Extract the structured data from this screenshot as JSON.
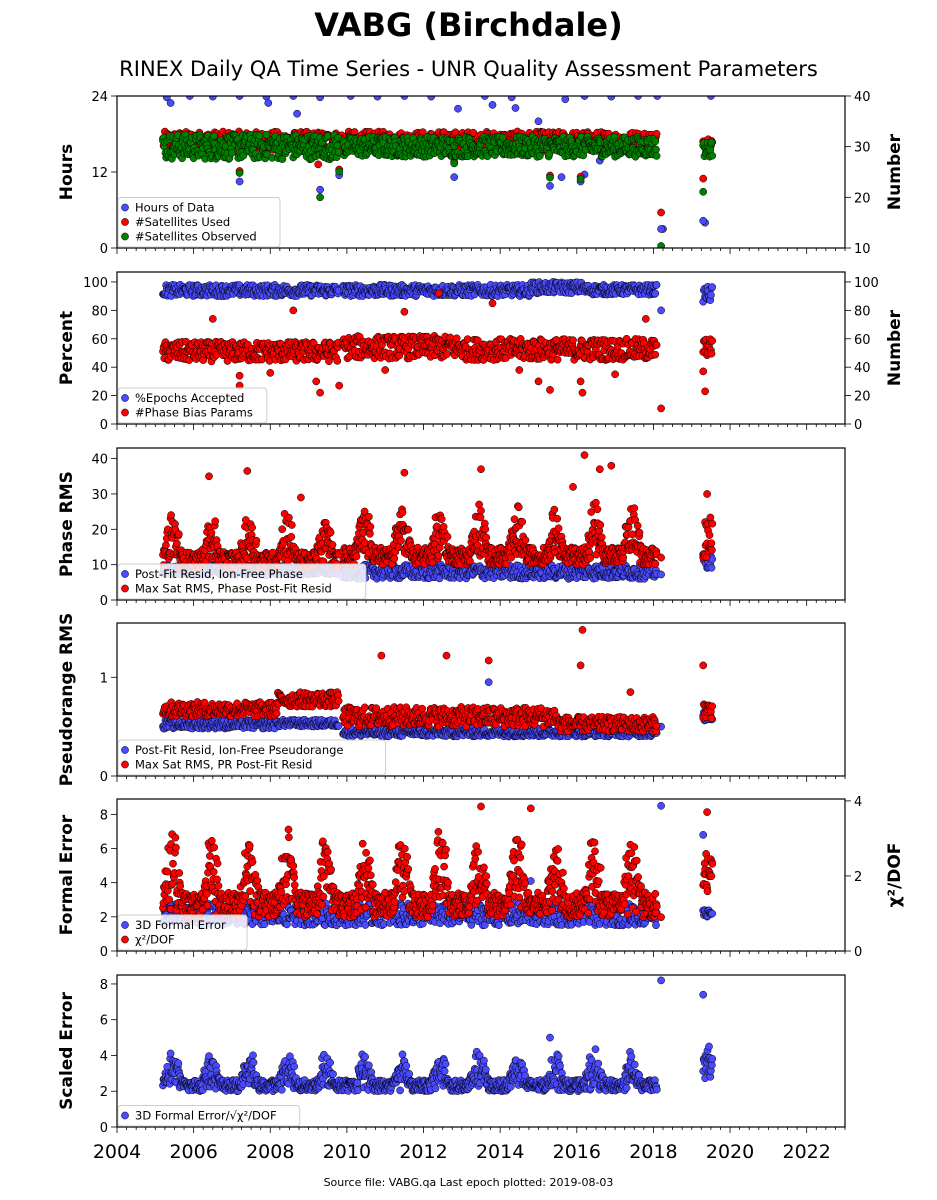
{
  "page": {
    "title": "VABG (Birchdale)",
    "subtitle": "RINEX Daily QA Time Series - UNR Quality Assessment Parameters",
    "footer": "Source file: VABG.qa Last epoch plotted: 2019-08-03"
  },
  "colors": {
    "blue": "#4a4aff",
    "red": "#ff0000",
    "green": "#008000",
    "edge": "#000000"
  },
  "chart_data": [
    {
      "type": "scatter",
      "ylabel": "Hours",
      "y2label": "Number",
      "ylim": [
        0,
        24
      ],
      "yticks": [
        0,
        12,
        24
      ],
      "y2lim": [
        10,
        40
      ],
      "y2ticks": [
        10,
        20,
        30,
        40
      ],
      "xlim": [
        2004,
        2023
      ],
      "legend_position": "lower-left",
      "series": [
        {
          "name": "Hours of Data",
          "color": "blue",
          "axis": "left",
          "pattern": {
            "points": [
              [
                2005.3,
                23.8
              ],
              [
                2005.9,
                24
              ],
              [
                2006.5,
                23.9
              ],
              [
                2007.2,
                24
              ],
              [
                2007.9,
                23.9
              ],
              [
                2008.6,
                24
              ],
              [
                2009.3,
                23.8
              ],
              [
                2010.1,
                24
              ],
              [
                2010.8,
                23.9
              ],
              [
                2011.5,
                24
              ],
              [
                2012.2,
                23.9
              ],
              [
                2012.9,
                22
              ],
              [
                2013.6,
                24
              ],
              [
                2014.3,
                23.8
              ],
              [
                2015.0,
                20
              ],
              [
                2015.3,
                17
              ],
              [
                2015.7,
                23.5
              ],
              [
                2016.2,
                24
              ],
              [
                2016.9,
                23.9
              ],
              [
                2017.6,
                24
              ],
              [
                2018.1,
                24
              ],
              [
                2018.25,
                3
              ],
              [
                2019.35,
                4
              ],
              [
                2019.5,
                24
              ]
            ]
          },
          "outliers": [
            [
              2005.4,
              22.9
            ],
            [
              2007.2,
              10.5
            ],
            [
              2007.95,
              22.9
            ],
            [
              2008.7,
              21.2
            ],
            [
              2009.25,
              17.7
            ],
            [
              2009.3,
              9.2
            ],
            [
              2009.8,
              11.5
            ],
            [
              2012.8,
              11.2
            ],
            [
              2013.8,
              22.6
            ],
            [
              2014.4,
              22.1
            ],
            [
              2014.45,
              17.8
            ],
            [
              2015.3,
              9.8
            ],
            [
              2015.6,
              11.2
            ],
            [
              2016.1,
              10.5
            ],
            [
              2016.2,
              11.6
            ],
            [
              2016.6,
              13.8
            ],
            [
              2017.8,
              17.2
            ],
            [
              2018.2,
              3.0
            ],
            [
              2019.3,
              4.3
            ],
            [
              2019.45,
              16.5
            ]
          ]
        },
        {
          "name": "#Satellites Used",
          "color": "red",
          "axis": "right",
          "pattern": {
            "ranges": [
              [
                2005.2,
                2018.1,
                29,
                33
              ],
              [
                2019.3,
                2019.55,
                30,
                32
              ]
            ]
          },
          "outliers": [
            [
              2007.2,
              25.2
            ],
            [
              2009.25,
              26.5
            ],
            [
              2009.8,
              25.5
            ],
            [
              2012.8,
              27
            ],
            [
              2015.3,
              24.3
            ],
            [
              2016.1,
              24.1
            ],
            [
              2018.2,
              17.0
            ],
            [
              2019.3,
              23.7
            ]
          ]
        },
        {
          "name": "#Satellites Observed",
          "color": "green",
          "axis": "right",
          "pattern": {
            "ranges": [
              [
                2005.2,
                2009.8,
                27.5,
                32.5
              ],
              [
                2009.9,
                2018.1,
                28,
                32
              ],
              [
                2019.3,
                2019.55,
                28,
                31
              ]
            ]
          },
          "outliers": [
            [
              2007.2,
              24.8
            ],
            [
              2009.3,
              20.0
            ],
            [
              2009.8,
              25.1
            ],
            [
              2012.8,
              26.7
            ],
            [
              2015.3,
              23.9
            ],
            [
              2016.1,
              23.6
            ],
            [
              2018.2,
              10.4
            ],
            [
              2019.3,
              21.1
            ]
          ]
        }
      ]
    },
    {
      "type": "scatter",
      "ylabel": "Percent",
      "y2label": "Number",
      "ylim": [
        0,
        107
      ],
      "yticks": [
        0,
        20,
        40,
        60,
        80,
        100
      ],
      "y2lim": [
        0,
        107
      ],
      "y2ticks": [
        0,
        20,
        40,
        60,
        80,
        100
      ],
      "xlim": [
        2004,
        2023
      ],
      "legend_position": "lower-left",
      "series": [
        {
          "name": "%Epochs Accepted",
          "color": "blue",
          "axis": "left",
          "pattern": {
            "ranges": [
              [
                2005.2,
                2009.8,
                90,
                98
              ],
              [
                2009.9,
                2014.8,
                90,
                98
              ],
              [
                2014.8,
                2016.2,
                92,
                100
              ],
              [
                2016.2,
                2018.1,
                91,
                98
              ],
              [
                2019.3,
                2019.55,
                86,
                97
              ]
            ]
          },
          "outliers": [
            [
              2018.2,
              80.0
            ]
          ]
        },
        {
          "name": "#Phase Bias Params",
          "color": "red",
          "axis": "right",
          "pattern": {
            "ranges": [
              [
                2005.2,
                2009.8,
                44,
                58
              ],
              [
                2009.9,
                2013.0,
                46,
                62
              ],
              [
                2013.0,
                2018.1,
                45,
                60
              ],
              [
                2019.3,
                2019.55,
                48,
                60
              ]
            ]
          },
          "outliers": [
            [
              2006.5,
              74
            ],
            [
              2007.2,
              27
            ],
            [
              2007.2,
              34
            ],
            [
              2008.0,
              36
            ],
            [
              2008.6,
              80
            ],
            [
              2009.2,
              30
            ],
            [
              2009.3,
              22
            ],
            [
              2009.8,
              27
            ],
            [
              2011.0,
              38
            ],
            [
              2011.5,
              79
            ],
            [
              2012.4,
              92
            ],
            [
              2013.8,
              85
            ],
            [
              2014.5,
              38
            ],
            [
              2015.0,
              30
            ],
            [
              2015.3,
              24
            ],
            [
              2016.1,
              30
            ],
            [
              2016.15,
              22
            ],
            [
              2017.0,
              35
            ],
            [
              2017.8,
              74
            ],
            [
              2018.2,
              11
            ],
            [
              2019.3,
              37
            ],
            [
              2019.35,
              23
            ]
          ]
        }
      ]
    },
    {
      "type": "scatter",
      "ylabel": "Phase RMS",
      "ylim": [
        0,
        43
      ],
      "yticks": [
        0,
        10,
        20,
        30,
        40
      ],
      "xlim": [
        2004,
        2023
      ],
      "legend_position": "lower-left",
      "series": [
        {
          "name": "Post-Fit Resid, Ion-Free Phase",
          "color": "blue",
          "pattern": {
            "ranges": [
              [
                2005.2,
                2009.8,
                7,
                10
              ],
              [
                2009.9,
                2018.1,
                6,
                10
              ],
              [
                2019.3,
                2019.55,
                9,
                13
              ]
            ]
          },
          "outliers": [
            [
              2018.2,
              7.2
            ]
          ]
        },
        {
          "name": "Max Sat RMS, Phase Post-Fit Resid",
          "color": "red",
          "pattern": {
            "seasonal": [
              [
                2005.2,
                2009.8,
                9,
                13
              ],
              [
                2009.9,
                2018.1,
                10,
                14
              ],
              [
                2019.3,
                2019.55,
                11,
                11
              ]
            ]
          },
          "outliers": [
            [
              2006.4,
              35
            ],
            [
              2007.4,
              36.5
            ],
            [
              2008.8,
              29
            ],
            [
              2011.5,
              36
            ],
            [
              2013.5,
              37
            ],
            [
              2015.9,
              32
            ],
            [
              2016.2,
              41
            ],
            [
              2016.6,
              37
            ],
            [
              2016.9,
              38
            ],
            [
              2018.2,
              12
            ],
            [
              2019.4,
              30
            ]
          ]
        }
      ]
    },
    {
      "type": "scatter",
      "ylabel": "Pseudorange RMS",
      "ylim": [
        0,
        1.55
      ],
      "yticks": [
        0,
        1
      ],
      "xlim": [
        2004,
        2023
      ],
      "legend_position": "lower-left",
      "series": [
        {
          "name": "Post-Fit Resid, Ion-Free Pseudorange",
          "color": "blue",
          "pattern": {
            "ranges": [
              [
                2005.2,
                2008.2,
                0.48,
                0.57
              ],
              [
                2008.2,
                2009.8,
                0.5,
                0.57
              ],
              [
                2009.9,
                2018.1,
                0.4,
                0.48
              ],
              [
                2019.3,
                2019.55,
                0.56,
                0.65
              ]
            ]
          },
          "outliers": [
            [
              2013.7,
              0.95
            ],
            [
              2018.2,
              0.5
            ]
          ]
        },
        {
          "name": "Max Sat RMS, PR Post-Fit Resid",
          "color": "red",
          "pattern": {
            "ranges": [
              [
                2005.2,
                2008.2,
                0.6,
                0.75
              ],
              [
                2008.2,
                2009.8,
                0.7,
                0.85
              ],
              [
                2009.9,
                2015.5,
                0.5,
                0.7
              ],
              [
                2015.5,
                2018.1,
                0.45,
                0.6
              ],
              [
                2019.3,
                2019.55,
                0.58,
                0.75
              ]
            ]
          },
          "outliers": [
            [
              2010.9,
              1.22
            ],
            [
              2012.6,
              1.22
            ],
            [
              2013.7,
              1.17
            ],
            [
              2016.1,
              1.12
            ],
            [
              2016.15,
              1.48
            ],
            [
              2017.4,
              0.85
            ],
            [
              2019.3,
              1.12
            ]
          ]
        }
      ]
    },
    {
      "type": "scatter",
      "ylabel": "Formal Error",
      "y2label": "χ²/DOF",
      "ylim": [
        0,
        8.9
      ],
      "yticks": [
        0,
        2,
        4,
        6,
        8
      ],
      "y2lim": [
        0,
        4.05
      ],
      "y2ticks": [
        0,
        2,
        4
      ],
      "xlim": [
        2004,
        2023
      ],
      "legend_position": "lower-left",
      "series": [
        {
          "name": "3D Formal Error",
          "color": "blue",
          "axis": "left",
          "pattern": {
            "ranges": [
              [
                2005.2,
                2018.1,
                1.5,
                2.8
              ],
              [
                2019.3,
                2019.55,
                2.0,
                2.4
              ]
            ]
          },
          "outliers": [
            [
              2018.2,
              8.5
            ],
            [
              2019.3,
              6.8
            ],
            [
              2014.8,
              4.1
            ],
            [
              2016.2,
              3.5
            ]
          ]
        },
        {
          "name": "χ²/DOF",
          "color": "red",
          "axis": "right",
          "pattern": {
            "seasonal": [
              [
                2005.2,
                2018.1,
                0.9,
                1.9
              ],
              [
                2019.3,
                2019.55,
                1.2,
                1.5
              ]
            ]
          },
          "outliers": [
            [
              2013.5,
              3.85
            ],
            [
              2014.8,
              3.8
            ],
            [
              2019.4,
              3.7
            ],
            [
              2018.2,
              0.9
            ]
          ]
        }
      ]
    },
    {
      "type": "scatter",
      "ylabel": "Scaled Error",
      "ylim": [
        0,
        8.5
      ],
      "yticks": [
        0,
        2,
        4,
        6,
        8
      ],
      "xlim": [
        2004,
        2023
      ],
      "xticks": [
        2004,
        2006,
        2008,
        2010,
        2012,
        2014,
        2016,
        2018,
        2020,
        2022
      ],
      "legend_position": "lower-left",
      "series": [
        {
          "name": "3D Formal Error/√χ²/DOF",
          "color": "blue",
          "pattern": {
            "seasonal": [
              [
                2005.2,
                2018.1,
                2.0,
                1.8
              ],
              [
                2019.3,
                2019.55,
                2.5,
                1.5
              ]
            ]
          },
          "outliers": [
            [
              2015.3,
              5.0
            ],
            [
              2018.2,
              8.2
            ],
            [
              2019.3,
              7.4
            ],
            [
              2019.45,
              4.5
            ]
          ]
        }
      ]
    }
  ]
}
